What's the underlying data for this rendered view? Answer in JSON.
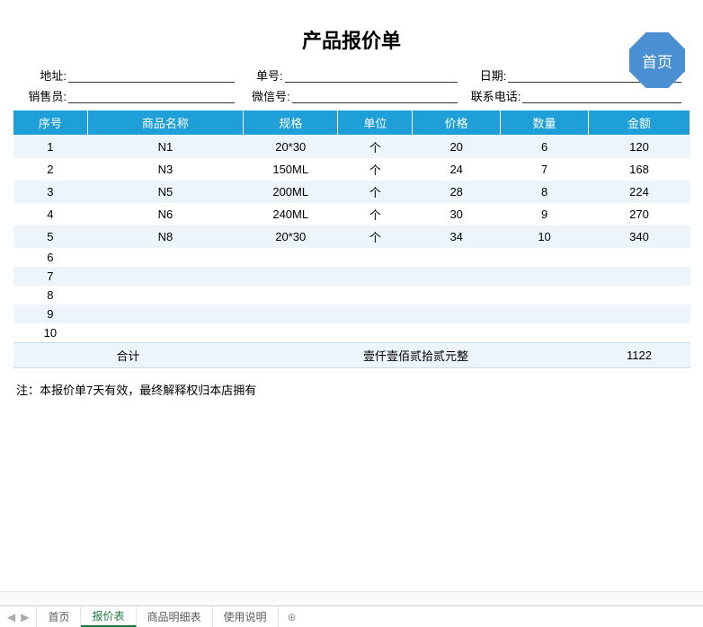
{
  "title": "产品报价单",
  "badge_label": "首页",
  "info": {
    "row1": [
      {
        "label": "地址:"
      },
      {
        "label": "单号:"
      },
      {
        "label": "日期:"
      }
    ],
    "row2": [
      {
        "label": "销售员:"
      },
      {
        "label": "微信号:"
      },
      {
        "label": "联系电话:"
      }
    ]
  },
  "table": {
    "headers": [
      "序号",
      "商品名称",
      "规格",
      "单位",
      "价格",
      "数量",
      "金额"
    ],
    "col_widths_pct": [
      11,
      23,
      14,
      11,
      13,
      13,
      15
    ],
    "header_bg": "#1e9fd7",
    "header_fg": "#ffffff",
    "row_alt_bg": "#edf5fb",
    "rows": [
      [
        "1",
        "N1",
        "20*30",
        "个",
        "20",
        "6",
        "120"
      ],
      [
        "2",
        "N3",
        "150ML",
        "个",
        "24",
        "7",
        "168"
      ],
      [
        "3",
        "N5",
        "200ML",
        "个",
        "28",
        "8",
        "224"
      ],
      [
        "4",
        "N6",
        "240ML",
        "个",
        "30",
        "9",
        "270"
      ],
      [
        "5",
        "N8",
        "20*30",
        "个",
        "34",
        "10",
        "340"
      ],
      [
        "6",
        "",
        "",
        "",
        "",
        "",
        ""
      ],
      [
        "7",
        "",
        "",
        "",
        "",
        "",
        ""
      ],
      [
        "8",
        "",
        "",
        "",
        "",
        "",
        ""
      ],
      [
        "9",
        "",
        "",
        "",
        "",
        "",
        ""
      ],
      [
        "10",
        "",
        "",
        "",
        "",
        "",
        ""
      ]
    ],
    "total_label": "合计",
    "total_text": "壹仟壹佰贰拾贰元整",
    "total_amount": "1122"
  },
  "note": "注：本报价单7天有效，最终解释权归本店拥有",
  "sheet_tabs": {
    "items": [
      "首页",
      "报价表",
      "商品明细表",
      "使用说明"
    ],
    "active_index": 1
  }
}
